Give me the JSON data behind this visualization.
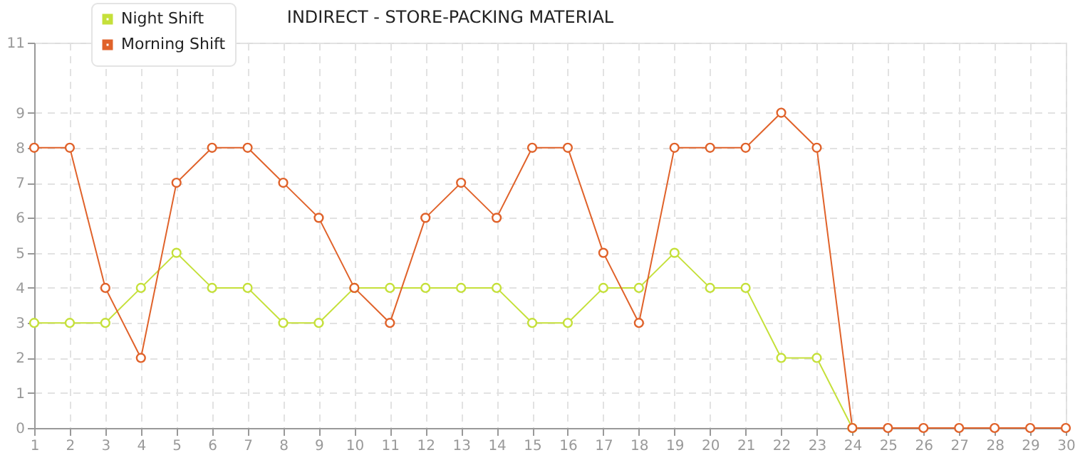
{
  "chart_data": {
    "type": "line",
    "title": "INDIRECT - STORE-PACKING  MATERIAL",
    "x": [
      1,
      2,
      3,
      4,
      5,
      6,
      7,
      8,
      9,
      10,
      11,
      12,
      13,
      14,
      15,
      16,
      17,
      18,
      19,
      20,
      21,
      22,
      23,
      24,
      25,
      26,
      27,
      28,
      29,
      30
    ],
    "series": [
      {
        "name": "Night Shift",
        "color": "#c5e03a",
        "values": [
          3,
          3,
          3,
          4,
          5,
          4,
          4,
          3,
          3,
          4,
          4,
          4,
          4,
          4,
          3,
          3,
          4,
          4,
          5,
          4,
          4,
          2,
          2,
          0,
          null,
          null,
          null,
          null,
          null,
          null
        ]
      },
      {
        "name": "Morning Shift",
        "color": "#e0622a",
        "values": [
          8,
          8,
          4,
          2,
          7,
          8,
          8,
          7,
          6,
          4,
          3,
          6,
          7,
          6,
          8,
          8,
          5,
          3,
          8,
          8,
          8,
          9,
          8,
          0,
          0,
          0,
          0,
          0,
          0,
          0
        ]
      }
    ],
    "xlim": [
      1,
      30
    ],
    "xticks": [
      1,
      2,
      3,
      4,
      5,
      6,
      7,
      8,
      9,
      10,
      11,
      12,
      13,
      14,
      15,
      16,
      17,
      18,
      19,
      20,
      21,
      22,
      23,
      24,
      25,
      26,
      27,
      28,
      29,
      30
    ],
    "ylim": [
      0,
      11
    ],
    "yticks": [
      0,
      1,
      2,
      3,
      4,
      5,
      6,
      7,
      8,
      9,
      11
    ],
    "grid": true,
    "legend": "top left",
    "marker": "circle",
    "line_style": "solid"
  }
}
